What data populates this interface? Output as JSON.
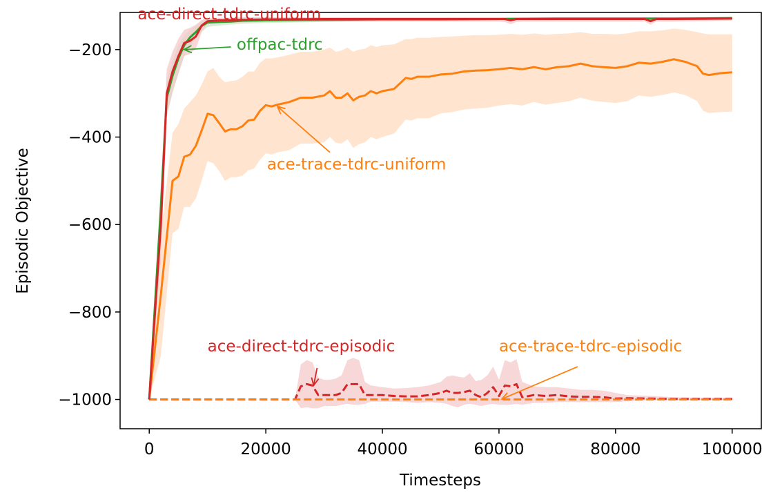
{
  "chart_data": {
    "type": "line",
    "title": "",
    "xlabel": "Timesteps",
    "ylabel": "Episodic Objective",
    "xlim": [
      -5000,
      105000
    ],
    "ylim": [
      -1067,
      -115
    ],
    "xticks": [
      0,
      20000,
      40000,
      60000,
      80000,
      100000
    ],
    "xtick_labels": [
      "0",
      "20000",
      "40000",
      "60000",
      "80000",
      "100000"
    ],
    "yticks": [
      -200,
      -400,
      -600,
      -800,
      -1000
    ],
    "ytick_labels": [
      "−200",
      "−400",
      "−600",
      "−800",
      "−1000"
    ],
    "grid": false,
    "legend": "none",
    "series": [
      {
        "name": "ace-trace-tdrc-uniform",
        "color": "#ff7f0e",
        "band_color": "#ffdcc0",
        "dashed": false,
        "x": [
          0,
          2000,
          4000,
          5000,
          6000,
          7000,
          8000,
          9000,
          10000,
          11000,
          12000,
          13000,
          14000,
          15000,
          16000,
          17000,
          18000,
          19000,
          20000,
          21000,
          22000,
          24000,
          26000,
          28000,
          30000,
          31000,
          32000,
          33000,
          34000,
          35000,
          36000,
          37000,
          38000,
          39000,
          40000,
          42000,
          44000,
          45000,
          46000,
          48000,
          50000,
          52000,
          54000,
          56000,
          58000,
          60000,
          62000,
          64000,
          66000,
          68000,
          70000,
          72000,
          74000,
          76000,
          78000,
          80000,
          82000,
          84000,
          86000,
          88000,
          90000,
          92000,
          94000,
          95000,
          96000,
          98000,
          100000
        ],
        "y": [
          -1000,
          -760,
          -500,
          -490,
          -445,
          -440,
          -420,
          -385,
          -347,
          -350,
          -368,
          -387,
          -382,
          -382,
          -375,
          -362,
          -360,
          -340,
          -327,
          -330,
          -326,
          -320,
          -310,
          -310,
          -305,
          -295,
          -310,
          -310,
          -300,
          -316,
          -308,
          -305,
          -295,
          -300,
          -295,
          -290,
          -265,
          -267,
          -262,
          -262,
          -257,
          -255,
          -250,
          -248,
          -247,
          -245,
          -242,
          -245,
          -240,
          -245,
          -240,
          -238,
          -232,
          -238,
          -240,
          -242,
          -238,
          -230,
          -232,
          -228,
          -222,
          -228,
          -238,
          -255,
          -258,
          -254,
          -252
        ],
        "upper": [
          -1000,
          -620,
          -390,
          -370,
          -335,
          -320,
          -305,
          -280,
          -250,
          -242,
          -262,
          -275,
          -272,
          -270,
          -262,
          -250,
          -250,
          -230,
          -220,
          -220,
          -218,
          -212,
          -205,
          -205,
          -200,
          -195,
          -205,
          -202,
          -195,
          -205,
          -200,
          -198,
          -190,
          -194,
          -190,
          -188,
          -176,
          -176,
          -173,
          -173,
          -171,
          -170,
          -168,
          -167,
          -167,
          -166,
          -164,
          -166,
          -163,
          -166,
          -164,
          -163,
          -160,
          -164,
          -164,
          -165,
          -163,
          -158,
          -158,
          -156,
          -152,
          -155,
          -160,
          -163,
          -165,
          -165,
          -165
        ],
        "lower": [
          -1000,
          -900,
          -620,
          -610,
          -560,
          -560,
          -540,
          -500,
          -455,
          -460,
          -478,
          -500,
          -492,
          -492,
          -488,
          -476,
          -472,
          -452,
          -437,
          -440,
          -435,
          -430,
          -415,
          -415,
          -412,
          -400,
          -413,
          -415,
          -405,
          -425,
          -416,
          -412,
          -400,
          -405,
          -400,
          -392,
          -360,
          -362,
          -357,
          -357,
          -346,
          -343,
          -337,
          -335,
          -333,
          -328,
          -325,
          -328,
          -320,
          -326,
          -322,
          -318,
          -310,
          -317,
          -320,
          -322,
          -318,
          -305,
          -308,
          -304,
          -298,
          -304,
          -318,
          -340,
          -345,
          -343,
          -342
        ]
      },
      {
        "name": "offpac-tdrc",
        "color": "#2ca02c",
        "band_color": "#cbe9c8",
        "dashed": false,
        "x": [
          0,
          2000,
          3000,
          4000,
          5000,
          6000,
          7000,
          8000,
          9000,
          10000,
          12000,
          14000,
          16000,
          20000,
          30000,
          40000,
          50000,
          60000,
          70000,
          80000,
          90000,
          100000
        ],
        "y": [
          -1000,
          -560,
          -310,
          -260,
          -220,
          -190,
          -172,
          -160,
          -146,
          -138,
          -137,
          -136,
          -134,
          -133,
          -132,
          -131,
          -131,
          -130,
          -129,
          -129,
          -129,
          -128
        ],
        "upper": [
          -1000,
          -500,
          -270,
          -225,
          -190,
          -168,
          -155,
          -145,
          -135,
          -130,
          -130,
          -129,
          -128,
          -128,
          -127,
          -127,
          -127,
          -126,
          -126,
          -126,
          -126,
          -125
        ],
        "lower": [
          -1000,
          -620,
          -350,
          -300,
          -255,
          -215,
          -192,
          -176,
          -160,
          -148,
          -145,
          -143,
          -141,
          -139,
          -137,
          -136,
          -135,
          -134,
          -133,
          -133,
          -132,
          -132
        ]
      },
      {
        "name": "ace-direct-tdrc-uniform",
        "color": "#d62728",
        "band_color": "#f4caca",
        "dashed": false,
        "x": [
          0,
          2000,
          3000,
          4000,
          5000,
          6000,
          7000,
          8000,
          9000,
          10000,
          12000,
          14000,
          16000,
          20000,
          30000,
          40000,
          50000,
          60000,
          61000,
          62000,
          63000,
          64000,
          66000,
          70000,
          80000,
          85000,
          86000,
          87000,
          90000,
          100000
        ],
        "y": [
          -1000,
          -600,
          -300,
          -250,
          -215,
          -185,
          -180,
          -170,
          -145,
          -135,
          -133,
          -133,
          -132,
          -131,
          -130,
          -130,
          -130,
          -130,
          -130,
          -133,
          -130,
          -130,
          -130,
          -130,
          -130,
          -130,
          -135,
          -130,
          -130,
          -129
        ],
        "upper": [
          -1000,
          -520,
          -245,
          -205,
          -175,
          -155,
          -150,
          -143,
          -132,
          -128,
          -127,
          -127,
          -126,
          -126,
          -126,
          -126,
          -126,
          -126,
          -126,
          -126,
          -126,
          -126,
          -126,
          -126,
          -126,
          -126,
          -127,
          -126,
          -126,
          -125
        ],
        "lower": [
          -1000,
          -680,
          -355,
          -295,
          -255,
          -215,
          -210,
          -198,
          -160,
          -142,
          -139,
          -139,
          -138,
          -137,
          -136,
          -136,
          -136,
          -136,
          -137,
          -142,
          -137,
          -136,
          -136,
          -136,
          -136,
          -136,
          -143,
          -136,
          -136,
          -134
        ]
      },
      {
        "name": "ace-direct-tdrc-episodic",
        "color": "#d62728",
        "band_color": "#f4caca",
        "dashed": true,
        "x": [
          0,
          25000,
          26000,
          27000,
          28000,
          29000,
          30000,
          31000,
          32000,
          33000,
          34000,
          35000,
          36000,
          37000,
          38000,
          40000,
          42000,
          44000,
          46000,
          48000,
          50000,
          51000,
          52000,
          53000,
          54000,
          55000,
          56000,
          57000,
          58000,
          59000,
          60000,
          61000,
          62000,
          63000,
          64000,
          66000,
          68000,
          70000,
          72000,
          74000,
          76000,
          78000,
          80000,
          82000,
          86000,
          90000,
          95000,
          100000
        ],
        "y": [
          -1000,
          -1000,
          -970,
          -965,
          -968,
          -990,
          -990,
          -990,
          -990,
          -985,
          -965,
          -965,
          -965,
          -990,
          -990,
          -990,
          -992,
          -993,
          -993,
          -990,
          -985,
          -980,
          -985,
          -985,
          -983,
          -980,
          -990,
          -995,
          -985,
          -972,
          -992,
          -968,
          -970,
          -965,
          -995,
          -990,
          -992,
          -990,
          -993,
          -994,
          -994,
          -995,
          -998,
          -997,
          -998,
          -999,
          -999,
          -999
        ],
        "upper": [
          -1000,
          -1000,
          -920,
          -910,
          -915,
          -950,
          -955,
          -955,
          -952,
          -945,
          -910,
          -905,
          -910,
          -960,
          -968,
          -972,
          -975,
          -974,
          -972,
          -968,
          -960,
          -948,
          -945,
          -948,
          -950,
          -940,
          -958,
          -955,
          -945,
          -925,
          -955,
          -910,
          -915,
          -908,
          -960,
          -970,
          -972,
          -972,
          -975,
          -978,
          -978,
          -980,
          -985,
          -990,
          -992,
          -995,
          -996,
          -996
        ],
        "lower": [
          -1000,
          -1000,
          -1020,
          -1018,
          -1020,
          -1020,
          -1015,
          -1015,
          -1015,
          -1012,
          -1010,
          -1012,
          -1012,
          -1010,
          -1005,
          -1005,
          -1005,
          -1006,
          -1008,
          -1006,
          -1008,
          -1010,
          -1015,
          -1018,
          -1012,
          -1010,
          -1012,
          -1015,
          -1012,
          -1010,
          -1012,
          -1012,
          -1012,
          -1010,
          -1012,
          -1008,
          -1008,
          -1006,
          -1006,
          -1006,
          -1006,
          -1006,
          -1006,
          -1004,
          -1002,
          -1002,
          -1002,
          -1002
        ]
      },
      {
        "name": "ace-trace-tdrc-episodic",
        "color": "#ff7f0e",
        "band_color": "#ffdcc0",
        "dashed": true,
        "x": [
          0,
          20000,
          40000,
          60000,
          80000,
          100000
        ],
        "y": [
          -1000,
          -1000,
          -1000,
          -1000,
          -1000,
          -1000
        ],
        "upper": [
          -1000,
          -1000,
          -1000,
          -1000,
          -1000,
          -1000
        ],
        "lower": [
          -1000,
          -1000,
          -1000,
          -1000,
          -1000,
          -1000
        ]
      }
    ],
    "annotations": [
      {
        "text": "ace-direct-tdrc-uniform",
        "color": "#d62728",
        "text_x": -2000,
        "text_y": -131,
        "anchor": "start",
        "arrow": false
      },
      {
        "text": "offpac-tdrc",
        "color": "#2ca02c",
        "text_x": 15000,
        "text_y": -200,
        "anchor": "start",
        "arrow": true,
        "arrow_from_x": 14000,
        "arrow_from_y": -194,
        "arrow_to_x": 6000,
        "arrow_to_y": -200
      },
      {
        "text": "ace-trace-tdrc-uniform",
        "color": "#ff7f0e",
        "text_x": 20200,
        "text_y": -474,
        "anchor": "start",
        "arrow": true,
        "arrow_from_x": 31000,
        "arrow_from_y": -435,
        "arrow_to_x": 22000,
        "arrow_to_y": -330
      },
      {
        "text": "ace-direct-tdrc-episodic",
        "color": "#d62728",
        "text_x": 10000,
        "text_y": -890,
        "anchor": "start",
        "arrow": true,
        "arrow_from_x": 28800,
        "arrow_from_y": -928,
        "arrow_to_x": 28200,
        "arrow_to_y": -968
      },
      {
        "text": "ace-trace-tdrc-episodic",
        "color": "#ff7f0e",
        "text_x": 60000,
        "text_y": -890,
        "anchor": "start",
        "arrow": true,
        "arrow_from_x": 73500,
        "arrow_from_y": -925,
        "arrow_to_x": 60500,
        "arrow_to_y": -999
      }
    ]
  }
}
